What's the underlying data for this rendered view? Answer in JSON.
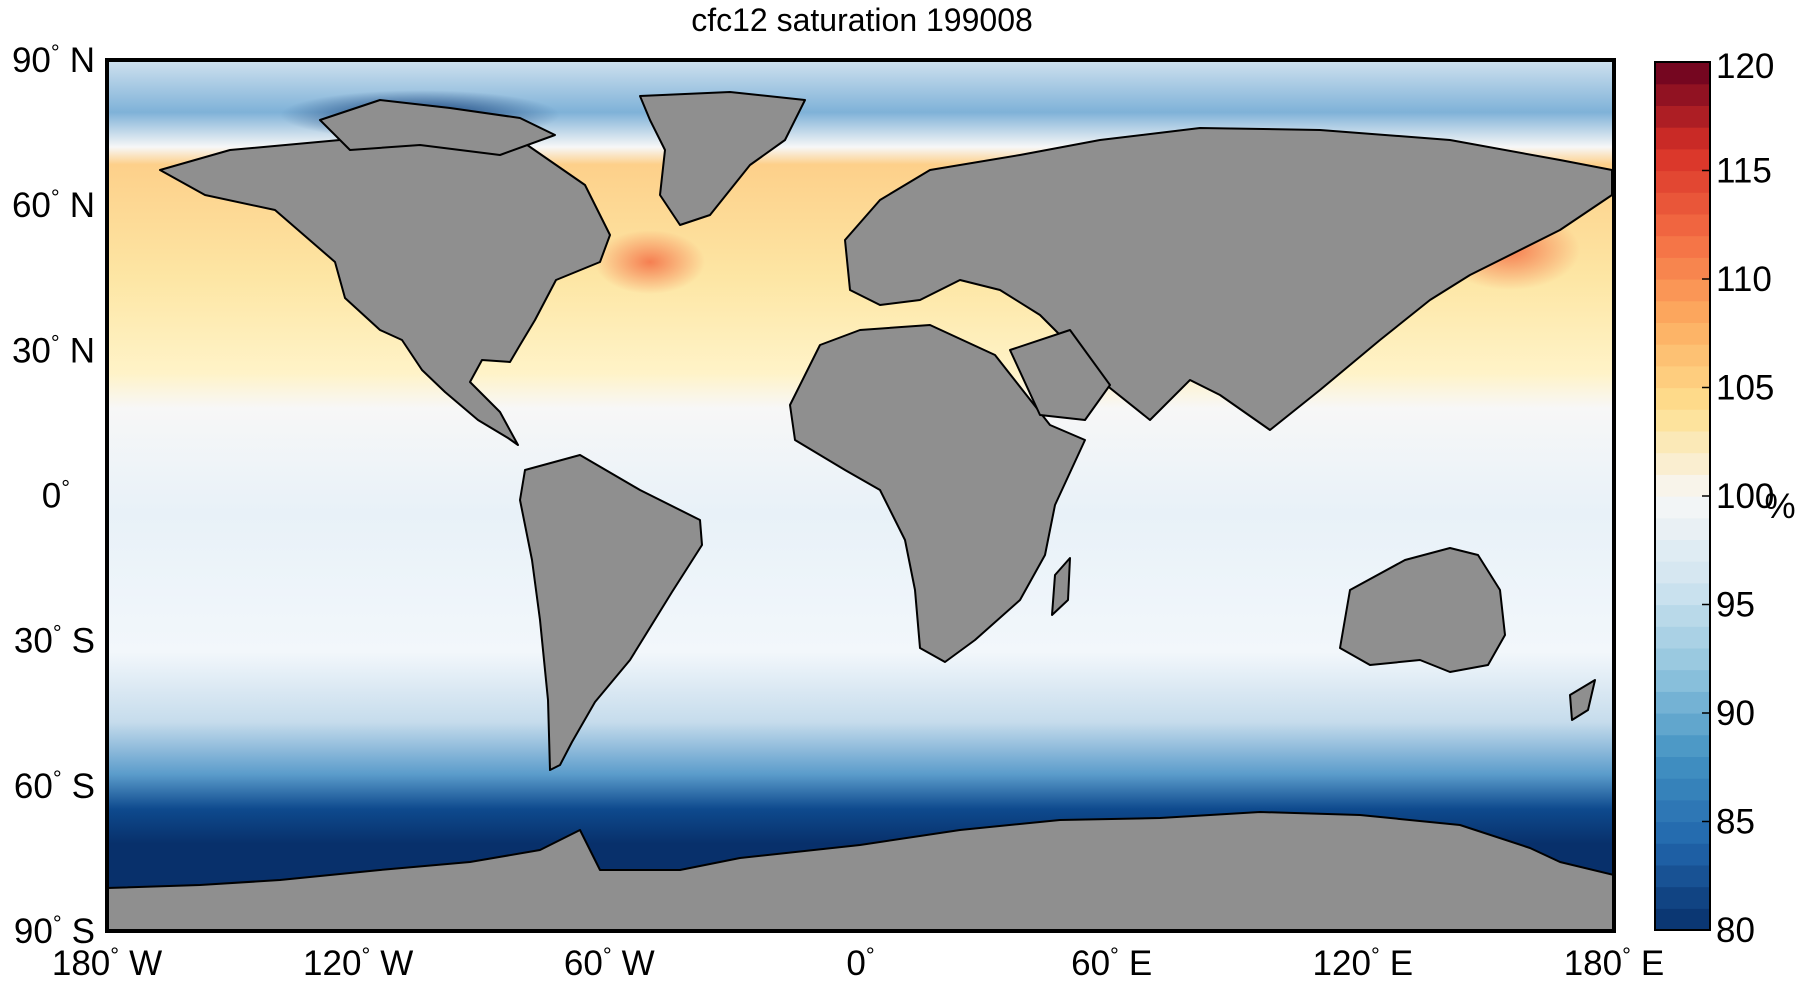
{
  "title": "cfc12 saturation 199008",
  "map": {
    "projection": "equirectangular",
    "lon_range": [
      -180,
      180
    ],
    "lat_range": [
      -90,
      90
    ],
    "land_color": "#8f8f8f",
    "coast_color": "#000000"
  },
  "lat_ticks": [
    {
      "value": 90,
      "label": "90",
      "hemi": "N"
    },
    {
      "value": 60,
      "label": "60",
      "hemi": "N"
    },
    {
      "value": 30,
      "label": "30",
      "hemi": "N"
    },
    {
      "value": 0,
      "label": "0",
      "hemi": ""
    },
    {
      "value": -30,
      "label": "30",
      "hemi": "S"
    },
    {
      "value": -60,
      "label": "60",
      "hemi": "S"
    },
    {
      "value": -90,
      "label": "90",
      "hemi": "S"
    }
  ],
  "lon_ticks": [
    {
      "value": -180,
      "label": "180",
      "hemi": "W"
    },
    {
      "value": -120,
      "label": "120",
      "hemi": "W"
    },
    {
      "value": -60,
      "label": "60",
      "hemi": "W"
    },
    {
      "value": 0,
      "label": "0",
      "hemi": ""
    },
    {
      "value": 60,
      "label": "60",
      "hemi": "E"
    },
    {
      "value": 120,
      "label": "120",
      "hemi": "E"
    },
    {
      "value": 180,
      "label": "180",
      "hemi": "E"
    }
  ],
  "colorbar": {
    "min": 80,
    "max": 120,
    "ticks": [
      "80",
      "85",
      "90",
      "95",
      "100",
      "105",
      "110",
      "115",
      "120"
    ],
    "unit": "%",
    "stops": [
      "#08306b",
      "#2166ac",
      "#4393c3",
      "#92c5de",
      "#d1e5f0",
      "#f7f7f7",
      "#fee090",
      "#fdae61",
      "#f46d43",
      "#d73027",
      "#67001f"
    ]
  }
}
